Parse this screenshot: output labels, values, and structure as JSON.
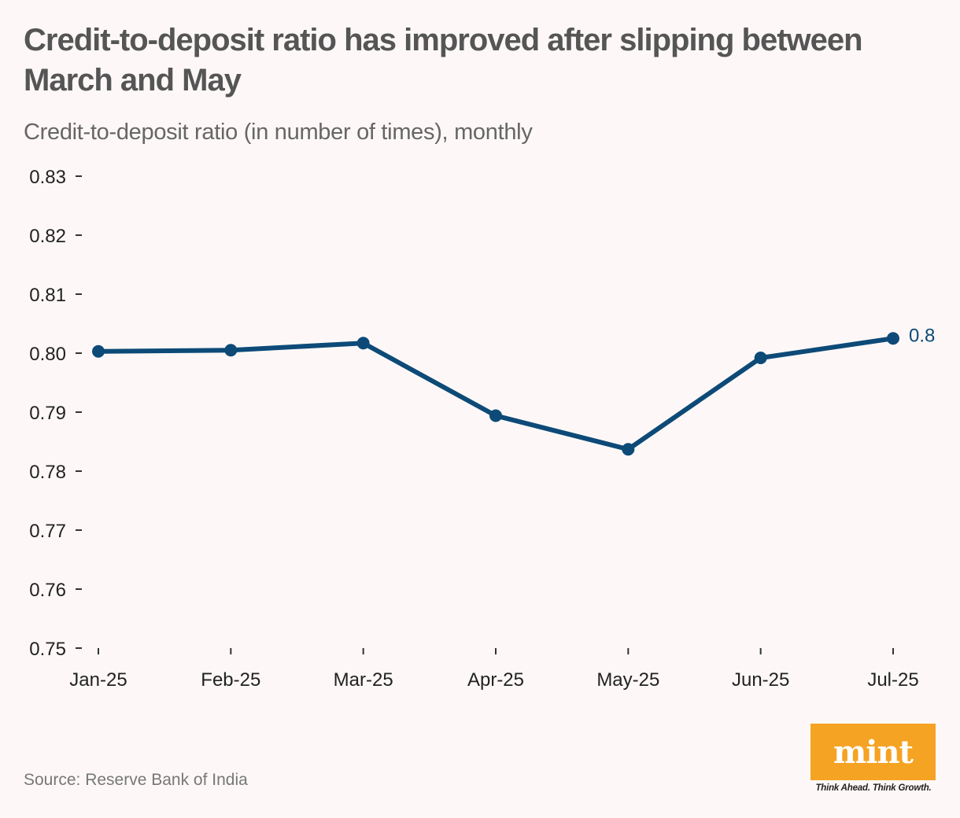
{
  "header": {
    "title": "Credit-to-deposit ratio has improved after slipping between March and May",
    "subtitle": "Credit-to-deposit ratio (in number of times), monthly"
  },
  "footer": {
    "source": "Source: Reserve Bank of India",
    "logo_text": "mint",
    "tagline": "Think Ahead. Think Growth."
  },
  "colors": {
    "background": "#fdf8f7",
    "line": "#0d4a78",
    "logo": "#f5a323"
  },
  "chart_data": {
    "type": "line",
    "categories": [
      "Jan-25",
      "Feb-25",
      "Mar-25",
      "Apr-25",
      "May-25",
      "Jun-25",
      "Jul-25"
    ],
    "series": [
      {
        "values": [
          0.8003,
          0.8005,
          0.8017,
          0.7894,
          0.7837,
          0.7992,
          0.8025
        ]
      }
    ],
    "yticks": [
      0.83,
      0.82,
      0.81,
      0.8,
      0.79,
      0.78,
      0.77,
      0.76,
      0.75
    ],
    "ytick_labels": [
      "0.83",
      "0.82",
      "0.81",
      "0.80",
      "0.79",
      "0.78",
      "0.77",
      "0.76",
      "0.75"
    ],
    "ylim": [
      0.75,
      0.83
    ],
    "end_label": "0.8",
    "grid": false
  }
}
